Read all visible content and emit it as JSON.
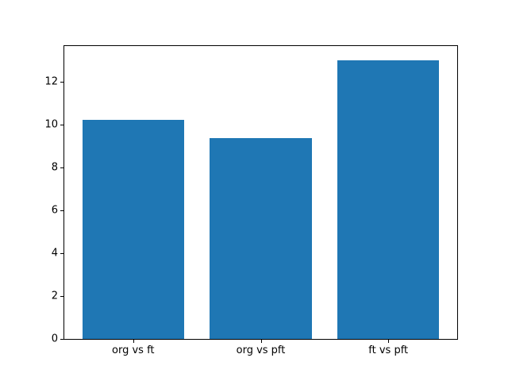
{
  "chart_data": {
    "type": "bar",
    "categories": [
      "org vs ft",
      "org vs pft",
      "ft vs pft"
    ],
    "values": [
      10.2,
      9.35,
      13.0
    ],
    "title": "",
    "xlabel": "",
    "ylabel": "",
    "ylim": [
      0,
      13.65
    ],
    "xlim": [
      -0.54,
      2.54
    ],
    "yticks": [
      0,
      2,
      4,
      6,
      8,
      10,
      12
    ],
    "bar_width_fraction": 0.8,
    "grid": false,
    "legend": false,
    "bar_color": "#1f77b4"
  },
  "colors": {
    "bar": "#1f77b4",
    "spine": "#000000",
    "tick_text": "#000000",
    "background": "#ffffff"
  }
}
